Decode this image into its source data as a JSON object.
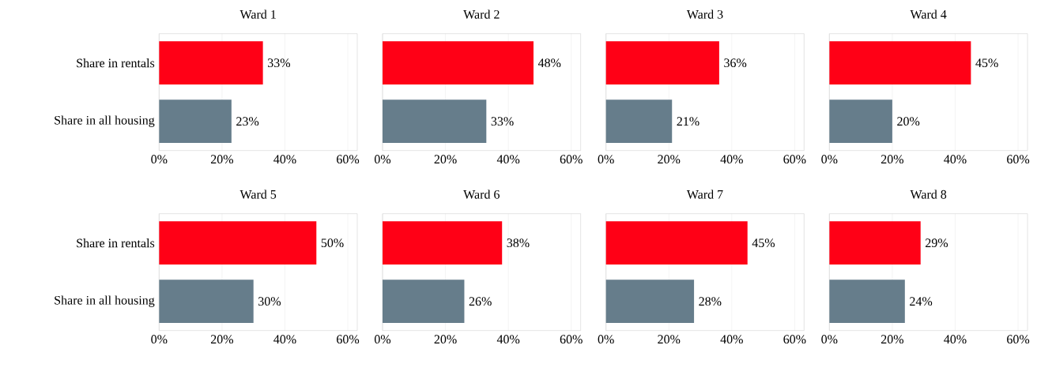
{
  "chart_data": [
    {
      "type": "bar",
      "orientation": "horizontal",
      "title": "Ward 1",
      "categories": [
        "Share in rentals",
        "Share in all housing"
      ],
      "values": [
        33,
        23
      ],
      "value_labels": [
        "33%",
        "23%"
      ],
      "colors": [
        "#ff0016",
        "#667d8b"
      ],
      "xlim": [
        0,
        63
      ],
      "xticks": [
        {
          "value": 0,
          "label": "0%"
        },
        {
          "value": 20,
          "label": "20%"
        },
        {
          "value": 40,
          "label": "40%"
        },
        {
          "value": 60,
          "label": "60%"
        }
      ],
      "grid": "x"
    },
    {
      "type": "bar",
      "orientation": "horizontal",
      "title": "Ward 2",
      "categories": [
        null,
        null
      ],
      "values": [
        48,
        33
      ],
      "value_labels": [
        "48%",
        "33%"
      ],
      "colors": [
        "#ff0016",
        "#667d8b"
      ],
      "xlim": [
        0,
        63
      ],
      "xticks": [
        {
          "value": 0,
          "label": "0%"
        },
        {
          "value": 20,
          "label": "20%"
        },
        {
          "value": 40,
          "label": "40%"
        },
        {
          "value": 60,
          "label": "60%"
        }
      ],
      "grid": "x",
      "tick_labels": "x"
    },
    {
      "type": "bar",
      "orientation": "horizontal",
      "title": "Ward 3",
      "categories": [
        null,
        null
      ],
      "values": [
        36,
        21
      ],
      "value_labels": [
        "36%",
        "21%"
      ],
      "colors": [
        "#ff0016",
        "#667d8b"
      ],
      "xlim": [
        0,
        63
      ],
      "xticks": [
        {
          "value": 0,
          "label": "0%"
        },
        {
          "value": 20,
          "label": "20%"
        },
        {
          "value": 40,
          "label": "40%"
        },
        {
          "value": 60,
          "label": "60%"
        }
      ],
      "grid": "x",
      "tick_labels": "x"
    },
    {
      "type": "bar",
      "orientation": "horizontal",
      "title": "Ward 4",
      "categories": [
        null,
        null
      ],
      "values": [
        45,
        20
      ],
      "value_labels": [
        "45%",
        "20%"
      ],
      "colors": [
        "#ff0016",
        "#667d8b"
      ],
      "xlim": [
        0,
        63
      ],
      "xticks": [
        {
          "value": 0,
          "label": "0%"
        },
        {
          "value": 20,
          "label": "20%"
        },
        {
          "value": 40,
          "label": "40%"
        },
        {
          "value": 60,
          "label": "60%"
        }
      ],
      "grid": "x",
      "tick_labels": "x"
    },
    {
      "type": "bar",
      "orientation": "horizontal",
      "title": "Ward 5",
      "categories": [
        "Share in rentals",
        "Share in all housing"
      ],
      "values": [
        50,
        30
      ],
      "value_labels": [
        "50%",
        "30%"
      ],
      "colors": [
        "#ff0016",
        "#667d8b"
      ],
      "xlim": [
        0,
        63
      ],
      "xticks": [
        {
          "value": 0,
          "label": "0%"
        },
        {
          "value": 20,
          "label": "20%"
        },
        {
          "value": 40,
          "label": "40%"
        },
        {
          "value": 60,
          "label": "60%"
        }
      ],
      "grid": "x"
    },
    {
      "type": "bar",
      "orientation": "horizontal",
      "title": "Ward 6",
      "categories": [
        null,
        null
      ],
      "values": [
        38,
        26
      ],
      "value_labels": [
        "38%",
        "26%"
      ],
      "colors": [
        "#ff0016",
        "#667d8b"
      ],
      "xlim": [
        0,
        63
      ],
      "xticks": [
        {
          "value": 0,
          "label": "0%"
        },
        {
          "value": 20,
          "label": "20%"
        },
        {
          "value": 40,
          "label": "40%"
        },
        {
          "value": 60,
          "label": "60%"
        }
      ],
      "grid": "x",
      "tick_labels": "x"
    },
    {
      "type": "bar",
      "orientation": "horizontal",
      "title": "Ward 7",
      "categories": [
        null,
        null
      ],
      "values": [
        45,
        28
      ],
      "value_labels": [
        "45%",
        "28%"
      ],
      "colors": [
        "#ff0016",
        "#667d8b"
      ],
      "xlim": [
        0,
        63
      ],
      "xticks": [
        {
          "value": 0,
          "label": "0%"
        },
        {
          "value": 20,
          "label": "20%"
        },
        {
          "value": 40,
          "label": "40%"
        },
        {
          "value": 60,
          "label": "60%"
        }
      ],
      "grid": "x",
      "tick_labels": "x"
    },
    {
      "type": "bar",
      "orientation": "horizontal",
      "title": "Ward 8",
      "categories": [
        null,
        null
      ],
      "values": [
        29,
        24
      ],
      "value_labels": [
        "29%",
        "24%"
      ],
      "colors": [
        "#ff0016",
        "#667d8b"
      ],
      "xlim": [
        0,
        63
      ],
      "xticks": [
        {
          "value": 0,
          "label": "0%"
        },
        {
          "value": 20,
          "label": "20%"
        },
        {
          "value": 40,
          "label": "40%"
        },
        {
          "value": 60,
          "label": "60%"
        }
      ],
      "grid": "x",
      "tick_labels": "x"
    }
  ]
}
